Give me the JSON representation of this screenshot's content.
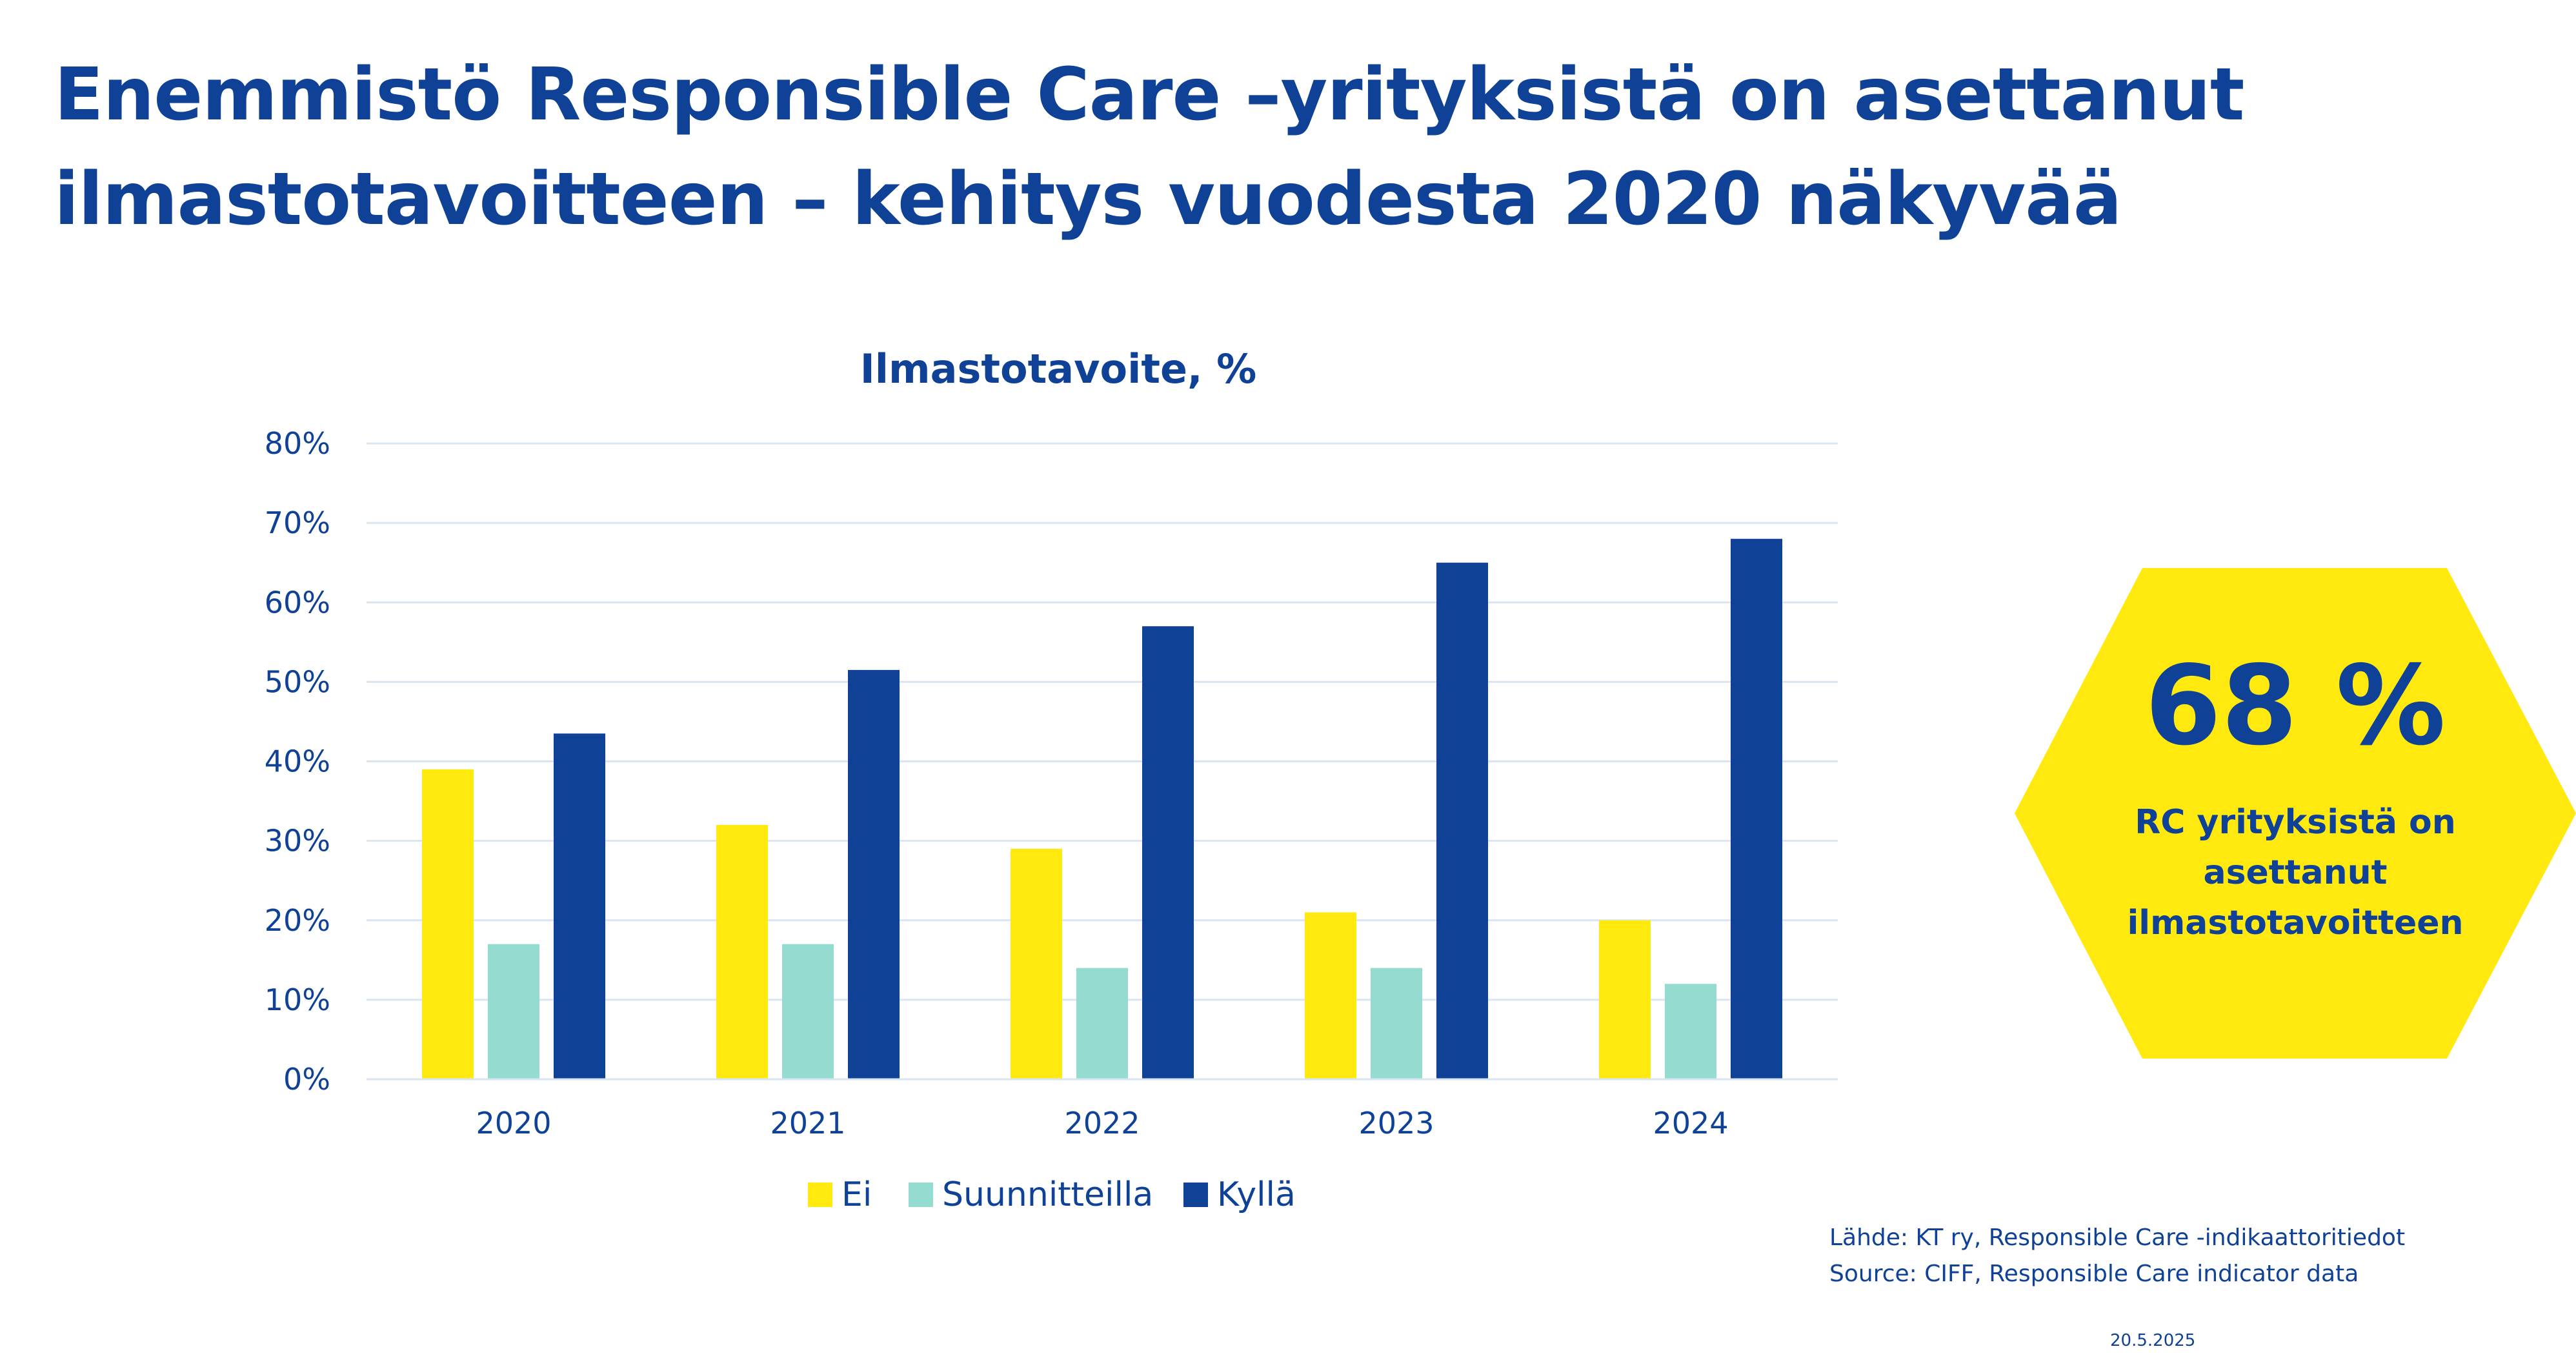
{
  "slide": {
    "title_line1": "Enemmistö Responsible Care –yrityksistä on asettanut",
    "title_line2": "ilmastotavoitteen – kehitys vuodesta 2020 näkyvää"
  },
  "chart_data": {
    "type": "bar",
    "title": "Ilmastotavoite, %",
    "xlabel": "",
    "ylabel": "",
    "categories": [
      "2020",
      "2021",
      "2022",
      "2023",
      "2024"
    ],
    "series": [
      {
        "name": "Ei",
        "color": "#ffe90f",
        "values": [
          39,
          32,
          29,
          21,
          20
        ]
      },
      {
        "name": "Suunnitteilla",
        "color": "#95dcd0",
        "values": [
          17,
          17,
          14,
          14,
          12
        ]
      },
      {
        "name": "Kyllä",
        "color": "#0f4196",
        "values": [
          43.5,
          51.5,
          57,
          65,
          68
        ]
      }
    ],
    "ylim": [
      0,
      80
    ],
    "yticks": [
      0,
      10,
      20,
      30,
      40,
      50,
      60,
      70,
      80
    ],
    "ytick_labels": [
      "0%",
      "10%",
      "20%",
      "30%",
      "40%",
      "50%",
      "60%",
      "70%",
      "80%"
    ],
    "grid": true,
    "legend_position": "bottom"
  },
  "highlight": {
    "value": "68 %",
    "text_line1": "RC yrityksistä on",
    "text_line2": "asettanut",
    "text_line3": "ilmastotavoitteen",
    "color": "#ffe90f"
  },
  "source": {
    "line1": "Lähde: KT ry, Responsible Care -indikaattoritiedot",
    "line2": "Source: CIFF, Responsible Care indicator data"
  },
  "date": "20.5.2025",
  "colors": {
    "primary": "#0f4196",
    "accent": "#ffe90f",
    "secondary": "#95dcd0",
    "grid": "#d9e6f2"
  }
}
